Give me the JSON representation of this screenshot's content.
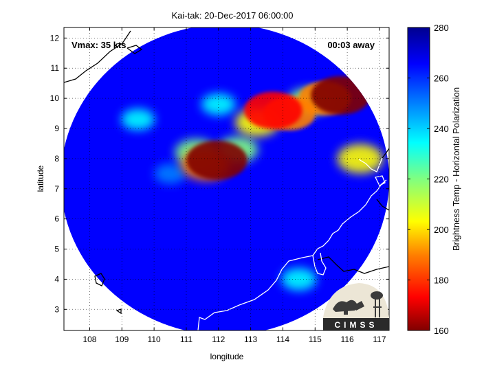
{
  "chart_data": {
    "type": "heatmap",
    "title": "Kai-tak: 20-Dec-2017 06:00:00",
    "xlabel": "longitude",
    "ylabel": "latitude",
    "xlim": [
      107.2,
      117.3
    ],
    "ylim": [
      2.3,
      12.35
    ],
    "xticks": [
      "108",
      "109",
      "110",
      "111",
      "112",
      "113",
      "114",
      "115",
      "116",
      "117"
    ],
    "yticks": [
      "3",
      "4",
      "5",
      "6",
      "7",
      "8",
      "9",
      "10",
      "11",
      "12"
    ],
    "grid": true,
    "annotations": {
      "vmax": "Vmax: 35 kts",
      "time_away": "00:03 away"
    },
    "colorbar": {
      "label": "Brightness Temp - Horizontal Polarization",
      "range": [
        160,
        280
      ],
      "ticks": [
        "160",
        "180",
        "200",
        "220",
        "240",
        "260",
        "280"
      ],
      "colormap": "jet",
      "colors": [
        "#800000",
        "#ff0000",
        "#ff8000",
        "#ffff00",
        "#80ff80",
        "#00ffff",
        "#0080ff",
        "#0000ff",
        "#00008f"
      ]
    },
    "swath": {
      "center": [
        112.2,
        7.3
      ],
      "radius_deg": [
        5.1,
        5.15
      ],
      "background_value": 262
    },
    "features": [
      {
        "lon": 111.95,
        "lat": 7.95,
        "value": 162
      },
      {
        "lon": 111.6,
        "lat": 7.8,
        "value": 195
      },
      {
        "lon": 111.3,
        "lat": 8.2,
        "value": 215
      },
      {
        "lon": 112.6,
        "lat": 8.3,
        "value": 220
      },
      {
        "lon": 113.7,
        "lat": 9.6,
        "value": 170
      },
      {
        "lon": 114.2,
        "lat": 9.5,
        "value": 185
      },
      {
        "lon": 113.2,
        "lat": 9.2,
        "value": 210
      },
      {
        "lon": 115.8,
        "lat": 10.1,
        "value": 165
      },
      {
        "lon": 115.3,
        "lat": 10.0,
        "value": 185
      },
      {
        "lon": 114.8,
        "lat": 9.9,
        "value": 215
      },
      {
        "lon": 116.4,
        "lat": 8.0,
        "value": 205
      },
      {
        "lon": 112.0,
        "lat": 9.8,
        "value": 238
      },
      {
        "lon": 109.5,
        "lat": 9.3,
        "value": 240
      },
      {
        "lon": 114.5,
        "lat": 4.0,
        "value": 235
      },
      {
        "lon": 110.5,
        "lat": 7.5,
        "value": 245
      }
    ]
  },
  "logo": {
    "text": "CIMSS"
  },
  "colors": {
    "coastline": "#000000",
    "coastline_on_swath": "#ffffff"
  }
}
